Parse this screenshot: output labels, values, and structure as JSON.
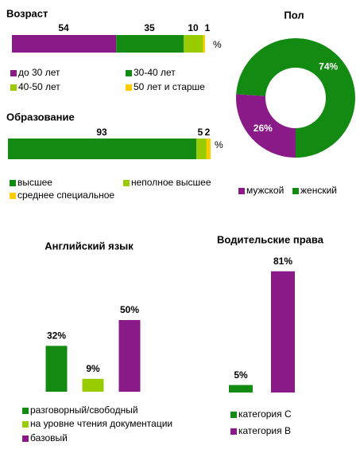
{
  "chart_data": [
    {
      "type": "stacked_bar",
      "title": "Возраст",
      "unit_label": "%",
      "series": [
        {
          "name": "до 30 лет",
          "color": "#8b1a89",
          "values": [
            54
          ]
        },
        {
          "name": "30-40 лет",
          "color": "#138b13",
          "values": [
            35
          ]
        },
        {
          "name": "40-50 лет",
          "color": "#99cc00",
          "values": [
            10
          ]
        },
        {
          "name": "50 лет и старше",
          "color": "#ffcc00",
          "values": [
            1
          ]
        }
      ]
    },
    {
      "type": "pie",
      "title": "Пол",
      "categories": [
        "мужской",
        "женский"
      ],
      "values": [
        26,
        74
      ],
      "value_labels": [
        "26%",
        "74%"
      ],
      "colors": [
        "#8b1a89",
        "#138b13"
      ]
    },
    {
      "type": "stacked_bar",
      "title": "Образование",
      "unit_label": "%",
      "series": [
        {
          "name": "высшее",
          "color": "#138b13",
          "values": [
            93
          ]
        },
        {
          "name": "неполное высшее",
          "color": "#99cc00",
          "values": [
            5
          ]
        },
        {
          "name": "среднее специальное",
          "color": "#ffcc00",
          "values": [
            2
          ]
        }
      ]
    },
    {
      "type": "bar",
      "title": "Английский язык",
      "categories": [
        "разговорный/свободный",
        "на уровне чтения документации",
        "базовый"
      ],
      "values": [
        32,
        9,
        50
      ],
      "value_labels": [
        "32%",
        "9%",
        "50%"
      ],
      "colors": [
        "#138b13",
        "#99cc00",
        "#8b1a89"
      ]
    },
    {
      "type": "bar",
      "title": "Водительские права",
      "categories": [
        "категория C",
        "категория B"
      ],
      "values": [
        5,
        81
      ],
      "value_labels": [
        "5%",
        "81%"
      ],
      "colors": [
        "#138b13",
        "#8b1a89"
      ]
    }
  ]
}
